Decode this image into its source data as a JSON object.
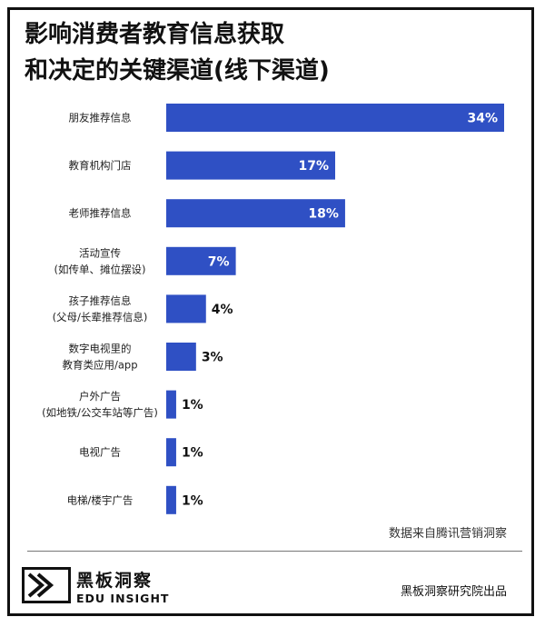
{
  "title_lines": [
    "影响消费者教育信息获取",
    "和决定的关键渠道(线下渠道)"
  ],
  "chart_data": {
    "type": "bar",
    "orientation": "horizontal",
    "title": "影响消费者教育信息获取和决定的关键渠道(线下渠道)",
    "categories": [
      [
        "朋友推荐信息"
      ],
      [
        "教育机构门店"
      ],
      [
        "老师推荐信息"
      ],
      [
        "活动宣传",
        "(如传单、摊位摆设)"
      ],
      [
        "孩子推荐信息",
        "(父母/长辈推荐信息)"
      ],
      [
        "数字电视里的",
        "教育类应用/app"
      ],
      [
        "户外广告",
        "(如地铁/公交车站等广告)"
      ],
      [
        "电视广告"
      ],
      [
        "电梯/楼宇广告"
      ]
    ],
    "values": [
      34,
      17,
      18,
      7,
      4,
      3,
      1,
      1,
      1
    ],
    "value_labels": [
      "34%",
      "17%",
      "18%",
      "7%",
      "4%",
      "3%",
      "1%",
      "1%",
      "1%"
    ],
    "xlabel": "",
    "ylabel": "",
    "xlim": [
      0,
      34
    ],
    "grid": false,
    "legend": "none",
    "bar_color": "#2f50c4"
  },
  "source": "数据来自腾讯营销洞察",
  "logo": {
    "name_cn": "黑板洞察",
    "name_en": "EDU INSIGHT",
    "icon": "edu-insight-logo-icon"
  },
  "publisher": "黑板洞察研究院出品",
  "colors": {
    "bar": "#2f50c4",
    "text": "#1a1a1a",
    "frame": "#111111"
  }
}
